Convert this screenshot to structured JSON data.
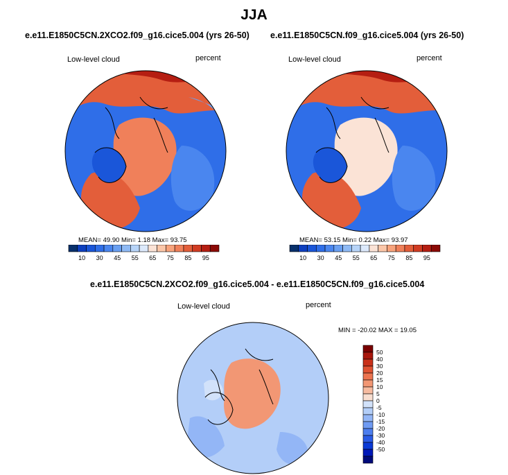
{
  "figure": {
    "title": "JJA"
  },
  "palettes": {
    "cloud": [
      "#08306b",
      "#0d3fbf",
      "#1a56d9",
      "#2f6ee8",
      "#4a86ef",
      "#6aa0f2",
      "#8fbaf5",
      "#b7d4f8",
      "#dce9fb",
      "#fbe3d6",
      "#fbc6a8",
      "#f8a37c",
      "#f0805a",
      "#e35e3a",
      "#d13c22",
      "#b51e12",
      "#8b0a06"
    ],
    "diff": [
      "#000a7a",
      "#0018b8",
      "#0a3ad6",
      "#2a5be6",
      "#4d7eef",
      "#6f9bf3",
      "#93b6f6",
      "#b3cef8",
      "#d2e2fa",
      "#f8ded0",
      "#f6bba0",
      "#f29774",
      "#ec7450",
      "#df5232",
      "#c9311a",
      "#a8160c",
      "#7a0000"
    ]
  },
  "chart_data": [
    {
      "type": "heatmap",
      "title": "e.e11.E1850C5CN.2XCO2.f09_g16.cice5.004 (yrs 26-50)",
      "left_label": "Low-level cloud",
      "units": "percent",
      "stats_text": "MEAN=  49.90  Min=   1.18  Max=  93.75",
      "mean": 49.9,
      "min": 1.18,
      "max": 93.75,
      "colorbar_ticks": [
        "10",
        "30",
        "45",
        "55",
        "65",
        "75",
        "85",
        "95"
      ]
    },
    {
      "type": "heatmap",
      "title": "e.e11.E1850C5CN.f09_g16.cice5.004 (yrs 26-50)",
      "left_label": "Low-level cloud",
      "units": "percent",
      "stats_text": "MEAN=  53.15  Min=   0.22  Max=  93.97",
      "mean": 53.15,
      "min": 0.22,
      "max": 93.97,
      "colorbar_ticks": [
        "10",
        "30",
        "45",
        "55",
        "65",
        "75",
        "85",
        "95"
      ]
    },
    {
      "type": "heatmap",
      "title": "e.e11.E1850C5CN.2XCO2.f09_g16.cice5.004 - e.e11.E1850C5CN.f09_g16.cice5.004",
      "left_label": "Low-level cloud",
      "units": "percent",
      "stats_text": "MIN = -20.02 MAX =  19.05",
      "min": -20.02,
      "max": 19.05,
      "colorbar_ticks": [
        "50",
        "40",
        "30",
        "20",
        "15",
        "10",
        "5",
        "0",
        "-5",
        "-10",
        "-15",
        "-20",
        "-30",
        "-40",
        "-50"
      ]
    }
  ]
}
